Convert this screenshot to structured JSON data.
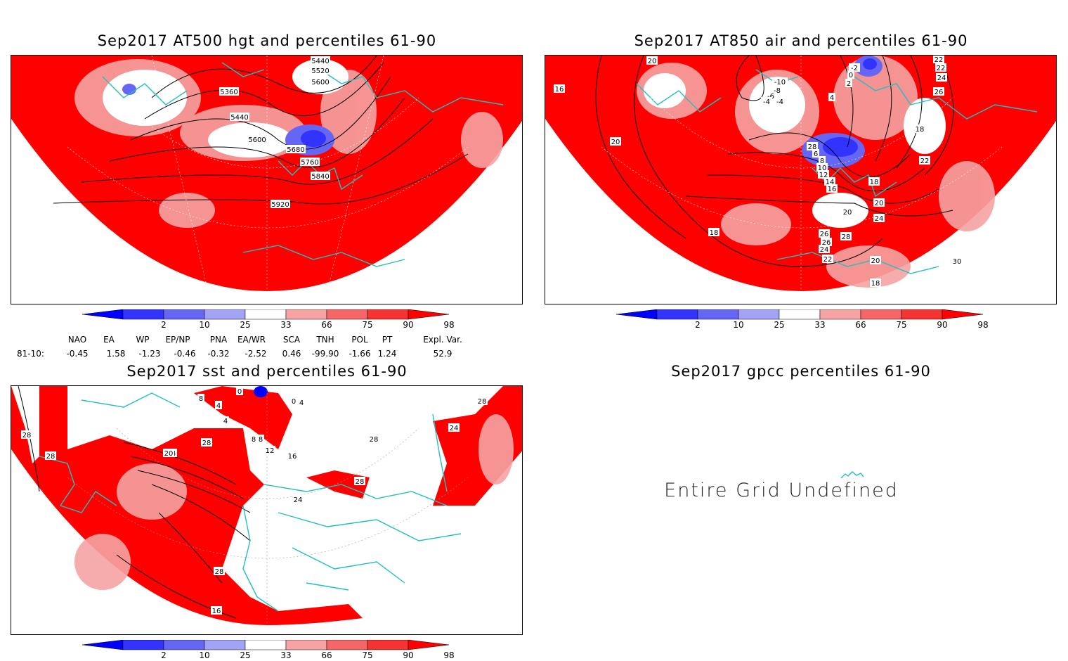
{
  "panels": [
    {
      "id": "hgt500",
      "title": "Sep2017 AT500 hgt and percentiles 61-90",
      "contour_labels": [
        "5440",
        "5520",
        "5600",
        "5360",
        "5440",
        "5600",
        "5680",
        "5760",
        "5840",
        "5920"
      ]
    },
    {
      "id": "air850",
      "title": "Sep2017 AT850 air and percentiles 61-90",
      "contour_labels": [
        "18",
        "16",
        "20",
        "18",
        "-10",
        "-8",
        "-6",
        "-4",
        "-4",
        "-2",
        "0",
        "2",
        "4",
        "22",
        "22",
        "24",
        "26",
        "18",
        "28",
        "6",
        "8",
        "10",
        "12",
        "14",
        "16",
        "18",
        "22",
        "20",
        "30",
        "24",
        "20",
        "28",
        "26",
        "26",
        "24",
        "22",
        "20",
        "18",
        "20",
        "16"
      ]
    },
    {
      "id": "sst",
      "title": "Sep2017 sst and percentiles 61-90",
      "contour_labels": [
        "0",
        "8",
        "4",
        "4",
        "4",
        "0",
        "24",
        "28",
        "8",
        "8",
        "12",
        "16",
        "28",
        "24",
        "28",
        "16",
        "20",
        "28",
        "24",
        "28",
        "28",
        "28"
      ]
    },
    {
      "id": "gpcc",
      "title": "Sep2017 gpcc percentiles 61-90",
      "message": "Entire Grid Undefined"
    }
  ],
  "colorbar": {
    "ticks": [
      "2",
      "10",
      "25",
      "33",
      "66",
      "75",
      "90",
      "98"
    ],
    "colors": [
      "#0000ff",
      "#3333ff",
      "#6666f5",
      "#a3a3f5",
      "#ffffff",
      "#f5a3a3",
      "#f56666",
      "#f53333",
      "#ff0000"
    ]
  },
  "indices": {
    "headers": [
      "NAO",
      "EA",
      "WP",
      "EP/NP",
      "PNA",
      "EA/WR",
      "SCA",
      "TNH",
      "POL",
      "PT",
      "Expl. Var."
    ],
    "row_label": "81-10:",
    "values": [
      "-0.45",
      "1.58",
      "-1.23",
      "-0.46",
      "-0.32",
      "-2.52",
      "0.46",
      "-99.90",
      "-1.66",
      "1.24",
      "52.9"
    ]
  },
  "colors": {
    "warm": "#ff0000",
    "cold": "#6666f5",
    "coast": "#20c0c0",
    "contour": "#000000"
  }
}
